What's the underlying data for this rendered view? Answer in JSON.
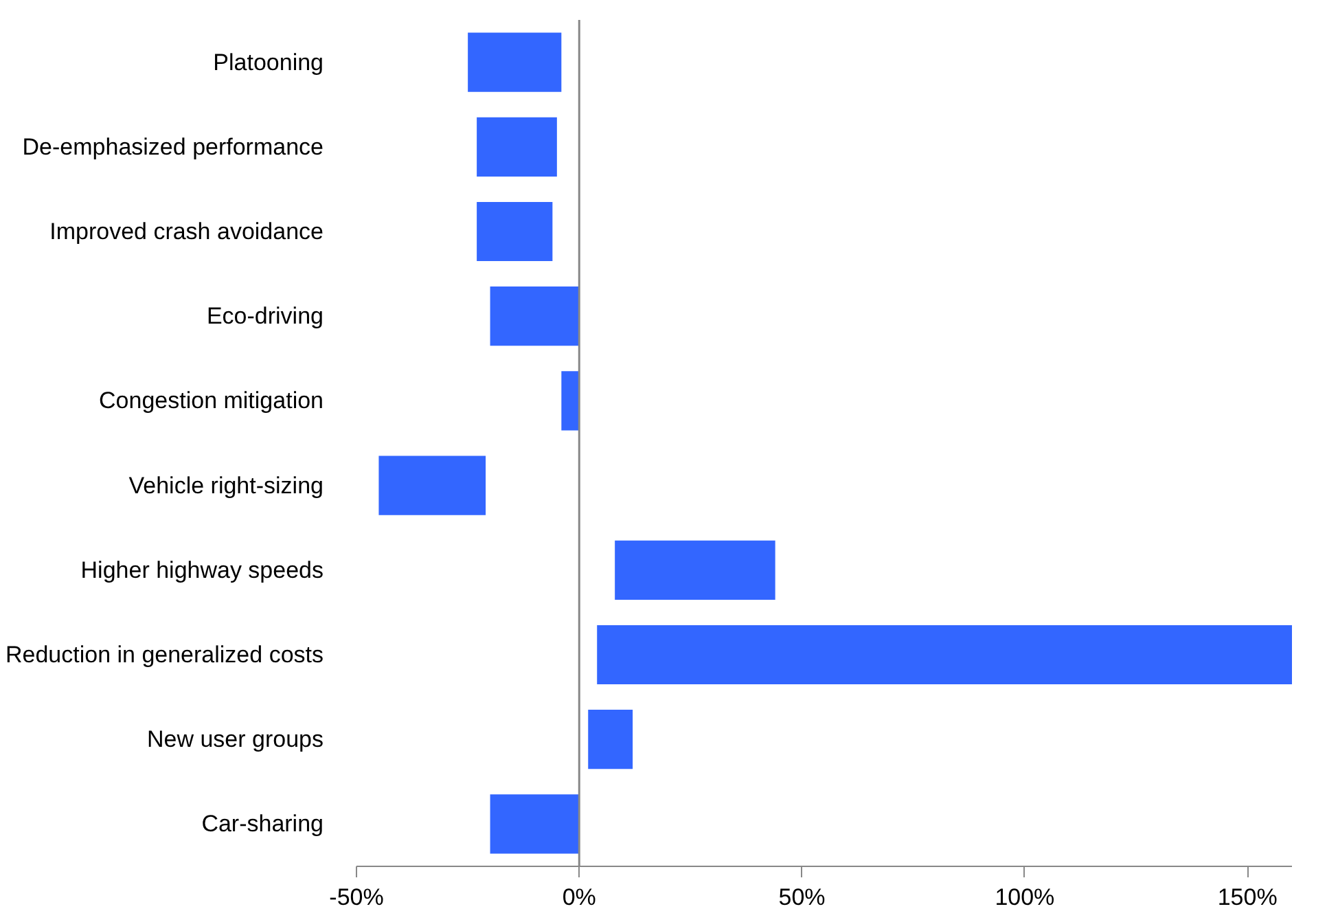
{
  "chart_data": {
    "type": "bar",
    "orientation": "horizontal",
    "categories": [
      "Platooning",
      "De-emphasized performance",
      "Improved crash avoidance",
      "Eco-driving",
      "Congestion mitigation",
      "Vehicle right-sizing",
      "Higher highway speeds",
      "Reduction in generalized costs",
      "New user groups",
      "Car-sharing"
    ],
    "base": [
      -25,
      -23,
      -23,
      -20,
      -4,
      -45,
      8,
      4,
      2,
      -20
    ],
    "values": [
      21,
      18,
      17,
      20,
      4,
      24,
      36,
      156,
      10,
      20
    ],
    "color": "#3366ff",
    "xlim": [
      -50,
      160
    ],
    "xticks": [
      {
        "value": -50,
        "label": "-50%"
      },
      {
        "value": 0,
        "label": "0%"
      },
      {
        "value": 50,
        "label": "50%"
      },
      {
        "value": 100,
        "label": "100%"
      },
      {
        "value": 150,
        "label": "150%"
      }
    ],
    "ref_lines": [
      {
        "axis": "x",
        "value": 0,
        "color": "#888888"
      }
    ]
  }
}
